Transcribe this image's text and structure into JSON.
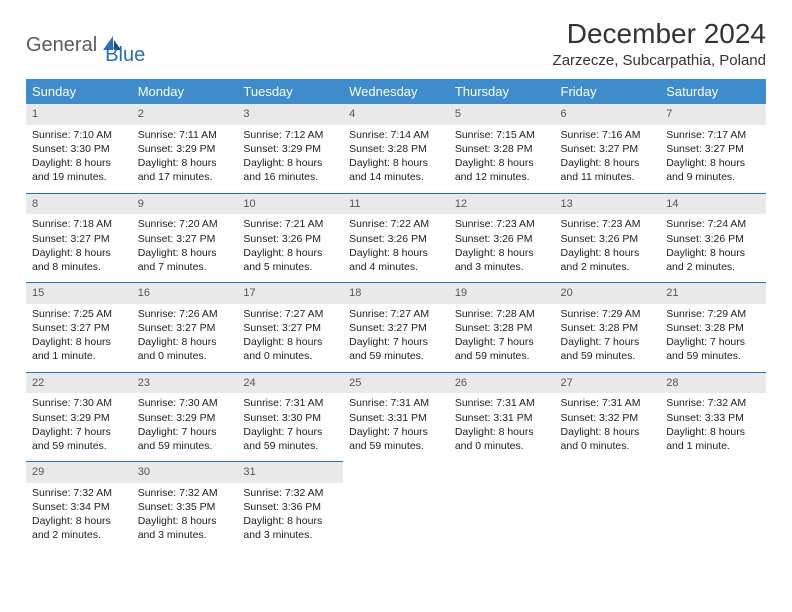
{
  "logo": {
    "text1": "General",
    "text2": "Blue"
  },
  "title": "December 2024",
  "location": "Zarzecze, Subcarpathia, Poland",
  "colors": {
    "header_bg": "#3e8ccc",
    "header_text": "#ffffff",
    "daynum_bg": "#e9e9e9",
    "border": "#2a6fb5",
    "logo_gray": "#5b5b5b",
    "logo_blue": "#2a6fb5"
  },
  "weekdays": [
    "Sunday",
    "Monday",
    "Tuesday",
    "Wednesday",
    "Thursday",
    "Friday",
    "Saturday"
  ],
  "weeks": [
    [
      {
        "day": "1",
        "sunrise": "Sunrise: 7:10 AM",
        "sunset": "Sunset: 3:30 PM",
        "daylight1": "Daylight: 8 hours",
        "daylight2": "and 19 minutes."
      },
      {
        "day": "2",
        "sunrise": "Sunrise: 7:11 AM",
        "sunset": "Sunset: 3:29 PM",
        "daylight1": "Daylight: 8 hours",
        "daylight2": "and 17 minutes."
      },
      {
        "day": "3",
        "sunrise": "Sunrise: 7:12 AM",
        "sunset": "Sunset: 3:29 PM",
        "daylight1": "Daylight: 8 hours",
        "daylight2": "and 16 minutes."
      },
      {
        "day": "4",
        "sunrise": "Sunrise: 7:14 AM",
        "sunset": "Sunset: 3:28 PM",
        "daylight1": "Daylight: 8 hours",
        "daylight2": "and 14 minutes."
      },
      {
        "day": "5",
        "sunrise": "Sunrise: 7:15 AM",
        "sunset": "Sunset: 3:28 PM",
        "daylight1": "Daylight: 8 hours",
        "daylight2": "and 12 minutes."
      },
      {
        "day": "6",
        "sunrise": "Sunrise: 7:16 AM",
        "sunset": "Sunset: 3:27 PM",
        "daylight1": "Daylight: 8 hours",
        "daylight2": "and 11 minutes."
      },
      {
        "day": "7",
        "sunrise": "Sunrise: 7:17 AM",
        "sunset": "Sunset: 3:27 PM",
        "daylight1": "Daylight: 8 hours",
        "daylight2": "and 9 minutes."
      }
    ],
    [
      {
        "day": "8",
        "sunrise": "Sunrise: 7:18 AM",
        "sunset": "Sunset: 3:27 PM",
        "daylight1": "Daylight: 8 hours",
        "daylight2": "and 8 minutes."
      },
      {
        "day": "9",
        "sunrise": "Sunrise: 7:20 AM",
        "sunset": "Sunset: 3:27 PM",
        "daylight1": "Daylight: 8 hours",
        "daylight2": "and 7 minutes."
      },
      {
        "day": "10",
        "sunrise": "Sunrise: 7:21 AM",
        "sunset": "Sunset: 3:26 PM",
        "daylight1": "Daylight: 8 hours",
        "daylight2": "and 5 minutes."
      },
      {
        "day": "11",
        "sunrise": "Sunrise: 7:22 AM",
        "sunset": "Sunset: 3:26 PM",
        "daylight1": "Daylight: 8 hours",
        "daylight2": "and 4 minutes."
      },
      {
        "day": "12",
        "sunrise": "Sunrise: 7:23 AM",
        "sunset": "Sunset: 3:26 PM",
        "daylight1": "Daylight: 8 hours",
        "daylight2": "and 3 minutes."
      },
      {
        "day": "13",
        "sunrise": "Sunrise: 7:23 AM",
        "sunset": "Sunset: 3:26 PM",
        "daylight1": "Daylight: 8 hours",
        "daylight2": "and 2 minutes."
      },
      {
        "day": "14",
        "sunrise": "Sunrise: 7:24 AM",
        "sunset": "Sunset: 3:26 PM",
        "daylight1": "Daylight: 8 hours",
        "daylight2": "and 2 minutes."
      }
    ],
    [
      {
        "day": "15",
        "sunrise": "Sunrise: 7:25 AM",
        "sunset": "Sunset: 3:27 PM",
        "daylight1": "Daylight: 8 hours",
        "daylight2": "and 1 minute."
      },
      {
        "day": "16",
        "sunrise": "Sunrise: 7:26 AM",
        "sunset": "Sunset: 3:27 PM",
        "daylight1": "Daylight: 8 hours",
        "daylight2": "and 0 minutes."
      },
      {
        "day": "17",
        "sunrise": "Sunrise: 7:27 AM",
        "sunset": "Sunset: 3:27 PM",
        "daylight1": "Daylight: 8 hours",
        "daylight2": "and 0 minutes."
      },
      {
        "day": "18",
        "sunrise": "Sunrise: 7:27 AM",
        "sunset": "Sunset: 3:27 PM",
        "daylight1": "Daylight: 7 hours",
        "daylight2": "and 59 minutes."
      },
      {
        "day": "19",
        "sunrise": "Sunrise: 7:28 AM",
        "sunset": "Sunset: 3:28 PM",
        "daylight1": "Daylight: 7 hours",
        "daylight2": "and 59 minutes."
      },
      {
        "day": "20",
        "sunrise": "Sunrise: 7:29 AM",
        "sunset": "Sunset: 3:28 PM",
        "daylight1": "Daylight: 7 hours",
        "daylight2": "and 59 minutes."
      },
      {
        "day": "21",
        "sunrise": "Sunrise: 7:29 AM",
        "sunset": "Sunset: 3:28 PM",
        "daylight1": "Daylight: 7 hours",
        "daylight2": "and 59 minutes."
      }
    ],
    [
      {
        "day": "22",
        "sunrise": "Sunrise: 7:30 AM",
        "sunset": "Sunset: 3:29 PM",
        "daylight1": "Daylight: 7 hours",
        "daylight2": "and 59 minutes."
      },
      {
        "day": "23",
        "sunrise": "Sunrise: 7:30 AM",
        "sunset": "Sunset: 3:29 PM",
        "daylight1": "Daylight: 7 hours",
        "daylight2": "and 59 minutes."
      },
      {
        "day": "24",
        "sunrise": "Sunrise: 7:31 AM",
        "sunset": "Sunset: 3:30 PM",
        "daylight1": "Daylight: 7 hours",
        "daylight2": "and 59 minutes."
      },
      {
        "day": "25",
        "sunrise": "Sunrise: 7:31 AM",
        "sunset": "Sunset: 3:31 PM",
        "daylight1": "Daylight: 7 hours",
        "daylight2": "and 59 minutes."
      },
      {
        "day": "26",
        "sunrise": "Sunrise: 7:31 AM",
        "sunset": "Sunset: 3:31 PM",
        "daylight1": "Daylight: 8 hours",
        "daylight2": "and 0 minutes."
      },
      {
        "day": "27",
        "sunrise": "Sunrise: 7:31 AM",
        "sunset": "Sunset: 3:32 PM",
        "daylight1": "Daylight: 8 hours",
        "daylight2": "and 0 minutes."
      },
      {
        "day": "28",
        "sunrise": "Sunrise: 7:32 AM",
        "sunset": "Sunset: 3:33 PM",
        "daylight1": "Daylight: 8 hours",
        "daylight2": "and 1 minute."
      }
    ],
    [
      {
        "day": "29",
        "sunrise": "Sunrise: 7:32 AM",
        "sunset": "Sunset: 3:34 PM",
        "daylight1": "Daylight: 8 hours",
        "daylight2": "and 2 minutes."
      },
      {
        "day": "30",
        "sunrise": "Sunrise: 7:32 AM",
        "sunset": "Sunset: 3:35 PM",
        "daylight1": "Daylight: 8 hours",
        "daylight2": "and 3 minutes."
      },
      {
        "day": "31",
        "sunrise": "Sunrise: 7:32 AM",
        "sunset": "Sunset: 3:36 PM",
        "daylight1": "Daylight: 8 hours",
        "daylight2": "and 3 minutes."
      },
      {
        "empty": true
      },
      {
        "empty": true
      },
      {
        "empty": true
      },
      {
        "empty": true
      }
    ]
  ]
}
